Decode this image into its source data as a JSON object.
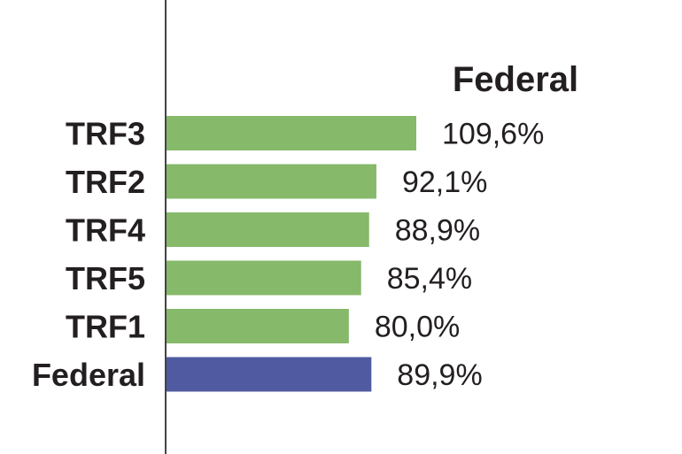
{
  "chart_data": {
    "type": "bar",
    "orientation": "horizontal",
    "title": "Federal",
    "categories": [
      "TRF3",
      "TRF2",
      "TRF4",
      "TRF5",
      "TRF1",
      "Federal"
    ],
    "values": [
      109.6,
      92.1,
      88.9,
      85.4,
      80.0,
      89.9
    ],
    "value_labels": [
      "109,6%",
      "92,1%",
      "88,9%",
      "85,4%",
      "80,0%",
      "89,9%"
    ],
    "xlim": [
      0,
      125
    ],
    "grid": false,
    "colors": {
      "bar": "#86b96a",
      "total_bar": "#4f5aa0",
      "axis": "#444444",
      "text": "#231f20"
    },
    "highlight_index": 5
  }
}
